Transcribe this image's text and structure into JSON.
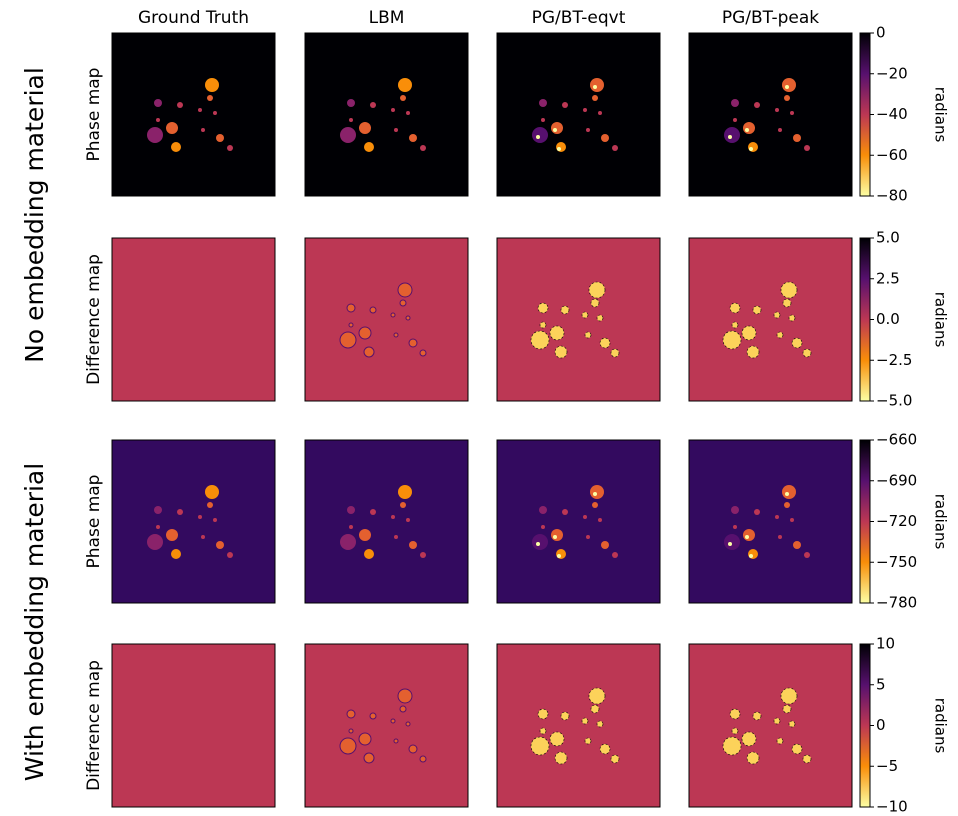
{
  "figure": {
    "columns": [
      "Ground Truth",
      "LBM",
      "PG/BT-eqvt",
      "PG/BT-peak"
    ],
    "groups": [
      "No embedding material",
      "With embedding material"
    ]
  },
  "chart_data": [
    {
      "type": "image",
      "ylabel": "Phase map",
      "colorbar_label": "radians",
      "colormap": "inferno_r",
      "ylim": [
        -80,
        0
      ],
      "yticks": [
        {
          "value": 0,
          "label": "0"
        },
        {
          "value": -20,
          "label": "−20"
        },
        {
          "value": -40,
          "label": "−40"
        },
        {
          "value": -60,
          "label": "−60"
        },
        {
          "value": -80,
          "label": "−80"
        }
      ]
    },
    {
      "type": "image",
      "ylabel": "Difference map",
      "colorbar_label": "radians",
      "colormap": "inferno_r",
      "ylim": [
        -5,
        5
      ],
      "yticks": [
        {
          "value": 5,
          "label": "5.0"
        },
        {
          "value": 2.5,
          "label": "2.5"
        },
        {
          "value": 0,
          "label": "0.0"
        },
        {
          "value": -2.5,
          "label": "−2.5"
        },
        {
          "value": -5,
          "label": "−5.0"
        }
      ]
    },
    {
      "type": "image",
      "ylabel": "Phase map",
      "colorbar_label": "radians",
      "colormap": "inferno_r",
      "ylim": [
        -780,
        -660
      ],
      "yticks": [
        {
          "value": -660,
          "label": "−660"
        },
        {
          "value": -690,
          "label": "−690"
        },
        {
          "value": -720,
          "label": "−720"
        },
        {
          "value": -750,
          "label": "−750"
        },
        {
          "value": -780,
          "label": "−780"
        }
      ]
    },
    {
      "type": "image",
      "ylabel": "Difference map",
      "colorbar_label": "radians",
      "colormap": "inferno_r",
      "ylim": [
        -10,
        10
      ],
      "yticks": [
        {
          "value": 10,
          "label": "10"
        },
        {
          "value": 5,
          "label": "5"
        },
        {
          "value": 0,
          "label": "0"
        },
        {
          "value": -5,
          "label": "−5"
        },
        {
          "value": -10,
          "label": "−10"
        }
      ]
    }
  ]
}
